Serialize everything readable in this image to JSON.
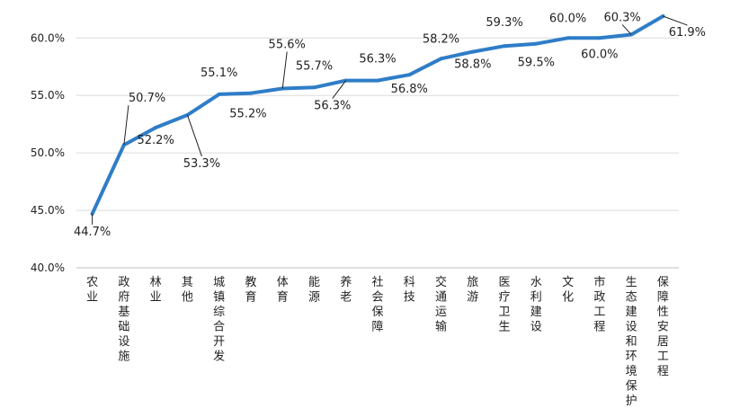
{
  "chart_data": {
    "type": "line",
    "title": "",
    "xlabel": "",
    "ylabel": "",
    "ylim": [
      40,
      61.9
    ],
    "yticks": [
      40,
      45,
      50,
      55,
      60
    ],
    "ytick_labels": [
      "40.0%",
      "45.0%",
      "50.0%",
      "55.0%",
      "60.0%"
    ],
    "grid": true,
    "legend": "none",
    "line_color": "#2f7dc8",
    "categories": [
      "农业",
      "政府基础设施",
      "林业",
      "其他",
      "城镇综合开发",
      "教育",
      "体育",
      "能源",
      "养老",
      "社会保障",
      "科技",
      "交通运输",
      "旅游",
      "医疗卫生",
      "水利建设",
      "文化",
      "市政工程",
      "生态建设和环境保护",
      "保障性安居工程"
    ],
    "values": [
      44.7,
      50.7,
      52.2,
      53.3,
      55.1,
      55.2,
      55.6,
      55.7,
      56.3,
      56.3,
      56.8,
      58.2,
      58.8,
      59.3,
      59.5,
      60.0,
      60.0,
      60.3,
      61.9
    ],
    "data_labels": [
      "44.7%",
      "50.7%",
      "52.2%",
      "53.3%",
      "55.1%",
      "55.2%",
      "55.6%",
      "55.7%",
      "56.3%",
      "56.3%",
      "56.8%",
      "58.2%",
      "58.8%",
      "59.3%",
      "59.5%",
      "60.0%",
      "60.0%",
      "60.3%",
      "61.9%"
    ]
  }
}
